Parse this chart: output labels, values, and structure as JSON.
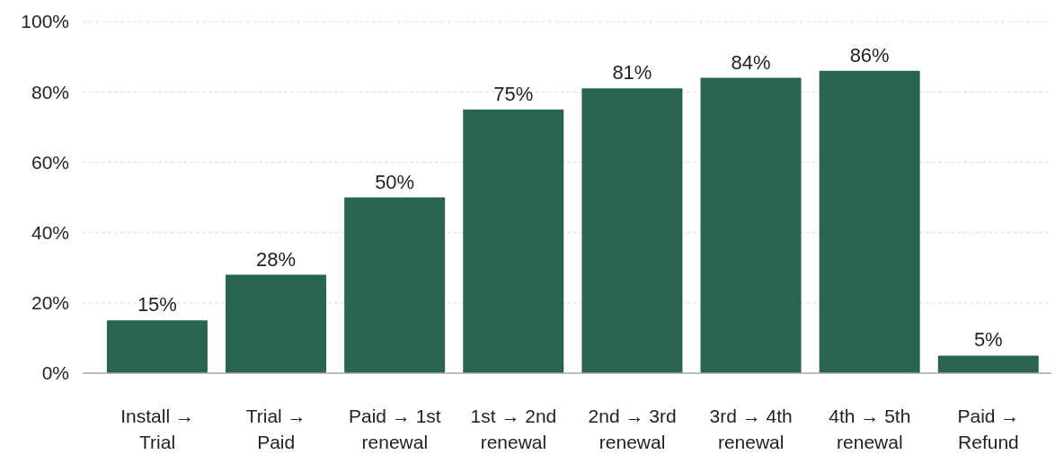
{
  "chart_data": {
    "type": "bar",
    "categories": [
      "Install → Trial",
      "Trial → Paid",
      "Paid → 1st renewal",
      "1st → 2nd renewal",
      "2nd → 3rd renewal",
      "3rd → 4th renewal",
      "4th → 5th renewal",
      "Paid → Refund"
    ],
    "values": [
      15,
      28,
      50,
      75,
      81,
      84,
      86,
      5
    ],
    "color": "#296352",
    "value_labels": [
      "15%",
      "28%",
      "50%",
      "75%",
      "81%",
      "84%",
      "86%",
      "5%"
    ],
    "ylim": [
      0,
      100
    ],
    "yticks": [
      {
        "value": 0,
        "label": "0%"
      },
      {
        "value": 20,
        "label": "20%"
      },
      {
        "value": 40,
        "label": "40%"
      },
      {
        "value": 60,
        "label": "60%"
      },
      {
        "value": 80,
        "label": "80%"
      },
      {
        "value": 100,
        "label": "100%"
      }
    ],
    "grid": "y"
  }
}
